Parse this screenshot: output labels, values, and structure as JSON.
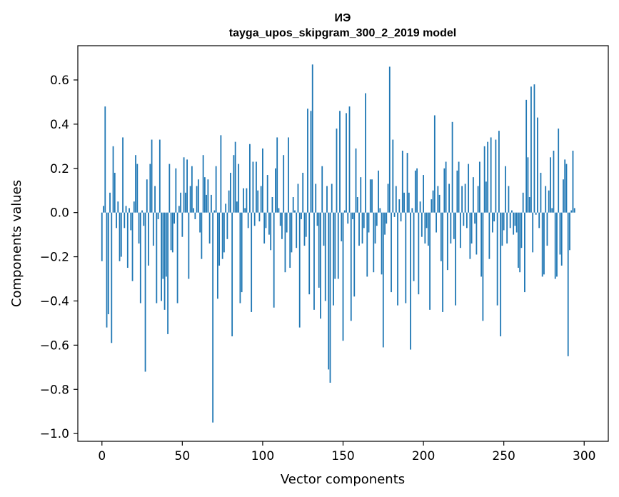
{
  "chart_data": {
    "type": "bar",
    "title_line1": "ИЭ",
    "title_line2": "tayga_upos_skipgram_300_2_2019 model",
    "xlabel": "Vector components",
    "ylabel": "Components values",
    "xlim": [
      -15,
      315
    ],
    "ylim": [
      -1.035,
      0.755
    ],
    "xticks": [
      0,
      50,
      100,
      150,
      200,
      250,
      300
    ],
    "xtick_labels": [
      "0",
      "50",
      "100",
      "150",
      "200",
      "250",
      "300"
    ],
    "yticks": [
      0.6,
      0.4,
      0.2,
      0.0,
      -0.2,
      -0.4,
      -0.6,
      -0.8,
      -1.0
    ],
    "ytick_labels": [
      "0.6",
      "0.4",
      "0.2",
      "0.0",
      "−0.2",
      "−0.4",
      "−0.6",
      "−0.8",
      "−1.0"
    ],
    "bar_color": "#1f77b4",
    "values": [
      -0.22,
      0.03,
      0.48,
      -0.52,
      -0.46,
      0.09,
      -0.59,
      0.3,
      0.18,
      -0.07,
      0.05,
      -0.22,
      -0.2,
      0.34,
      -0.07,
      0.03,
      -0.25,
      0.02,
      -0.08,
      -0.31,
      0.05,
      0.26,
      0.22,
      -0.14,
      -0.41,
      0.01,
      -0.06,
      -0.72,
      0.15,
      -0.24,
      0.22,
      0.33,
      -0.15,
      0.12,
      -0.41,
      -0.03,
      0.33,
      -0.4,
      -0.3,
      -0.44,
      -0.29,
      -0.55,
      0.22,
      -0.17,
      -0.18,
      -0.05,
      0.2,
      -0.41,
      0.03,
      0.09,
      -0.11,
      0.25,
      0.09,
      0.24,
      -0.3,
      0.12,
      0.21,
      0.02,
      -0.03,
      0.12,
      0.15,
      -0.09,
      -0.21,
      0.26,
      0.16,
      0.08,
      0.15,
      -0.14,
      0.08,
      -0.95,
      0.01,
      0.21,
      -0.39,
      -0.24,
      0.35,
      -0.21,
      -0.18,
      0.04,
      -0.12,
      0.1,
      0.18,
      -0.56,
      0.26,
      0.32,
      0.05,
      0.22,
      -0.41,
      -0.36,
      0.11,
      0.02,
      0.11,
      -0.07,
      0.31,
      -0.45,
      0.23,
      -0.06,
      0.23,
      0.1,
      -0.04,
      0.12,
      0.29,
      -0.14,
      -0.07,
      0.17,
      -0.1,
      -0.17,
      0.07,
      -0.43,
      0.2,
      0.34,
      0.02,
      -0.06,
      -0.12,
      0.26,
      -0.27,
      -0.09,
      0.34,
      -0.25,
      -0.18,
      0.07,
      0.01,
      -0.16,
      0.13,
      -0.52,
      -0.03,
      0.18,
      -0.15,
      -0.11,
      0.47,
      -0.37,
      0.46,
      0.67,
      -0.44,
      0.13,
      -0.06,
      -0.34,
      -0.48,
      0.21,
      -0.15,
      -0.4,
      0.12,
      -0.71,
      -0.77,
      0.13,
      -0.42,
      -0.3,
      0.38,
      -0.3,
      0.46,
      -0.13,
      -0.58,
      0.01,
      0.45,
      -0.05,
      0.48,
      -0.49,
      -0.03,
      -0.38,
      0.29,
      0.07,
      -0.15,
      0.16,
      -0.14,
      -0.07,
      0.54,
      -0.29,
      -0.09,
      0.15,
      0.15,
      -0.27,
      -0.14,
      -0.06,
      0.19,
      0.02,
      -0.28,
      -0.61,
      -0.1,
      -0.05,
      0.13,
      0.66,
      -0.36,
      0.33,
      -0.02,
      0.12,
      -0.42,
      0.06,
      -0.04,
      0.28,
      0.09,
      -0.41,
      0.27,
      0.09,
      -0.62,
      0.02,
      -0.31,
      0.19,
      0.2,
      -0.37,
      0.05,
      -0.11,
      0.17,
      -0.14,
      -0.07,
      -0.15,
      -0.44,
      0.06,
      0.1,
      0.44,
      -0.09,
      0.12,
      0.08,
      -0.22,
      -0.45,
      0.2,
      0.23,
      -0.26,
      0.13,
      -0.14,
      0.41,
      -0.12,
      -0.42,
      0.19,
      0.23,
      -0.16,
      0.12,
      -0.06,
      0.13,
      -0.07,
      0.22,
      -0.21,
      -0.14,
      0.16,
      -0.05,
      -0.19,
      0.12,
      0.23,
      -0.29,
      -0.49,
      0.3,
      0.14,
      0.32,
      -0.21,
      0.34,
      -0.09,
      -0.04,
      0.33,
      -0.42,
      0.37,
      -0.56,
      -0.15,
      -0.08,
      0.21,
      -0.14,
      0.12,
      -0.07,
      0.01,
      -0.1,
      -0.06,
      -0.09,
      -0.25,
      -0.27,
      -0.16,
      0.09,
      -0.36,
      0.51,
      0.25,
      0.07,
      0.57,
      -0.18,
      0.58,
      -0.01,
      0.43,
      -0.07,
      0.18,
      -0.29,
      -0.28,
      0.12,
      -0.15,
      0.1,
      0.25,
      0.02,
      0.28,
      -0.3,
      -0.29,
      0.38,
      -0.19,
      -0.24,
      0.15,
      0.24,
      0.22,
      -0.65,
      -0.17,
      0.01,
      0.28,
      0.02
    ]
  }
}
